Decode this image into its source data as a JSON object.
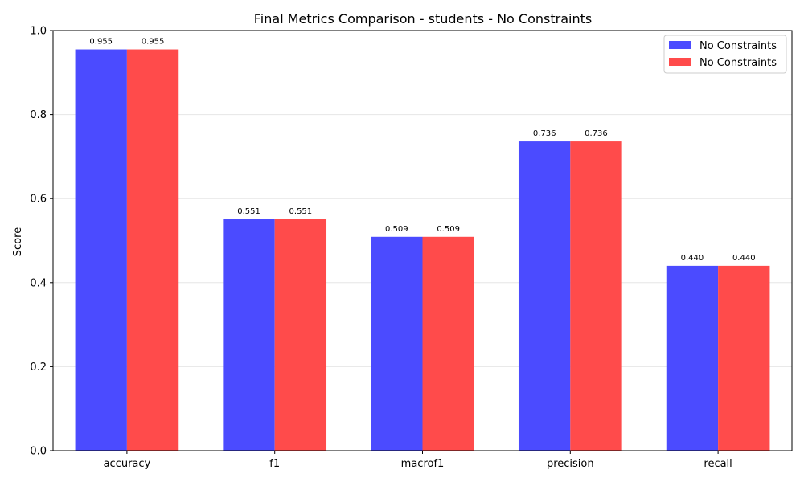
{
  "chart_data": {
    "type": "bar",
    "title": "Final Metrics Comparison - students - No Constraints",
    "xlabel": "",
    "ylabel": "Score",
    "categories": [
      "accuracy",
      "f1",
      "macrof1",
      "precision",
      "recall"
    ],
    "series": [
      {
        "name": "No Constraints",
        "color": "#4b4bff",
        "values": [
          0.955,
          0.551,
          0.509,
          0.736,
          0.44
        ],
        "labels": [
          "0.955",
          "0.551",
          "0.509",
          "0.736",
          "0.440"
        ]
      },
      {
        "name": "No Constraints",
        "color": "#ff4b4b",
        "values": [
          0.955,
          0.551,
          0.509,
          0.736,
          0.44
        ],
        "labels": [
          "0.955",
          "0.551",
          "0.509",
          "0.736",
          "0.440"
        ]
      }
    ],
    "ylim": [
      0,
      1.0
    ],
    "yticks": [
      "0.0",
      "0.2",
      "0.4",
      "0.6",
      "0.8",
      "1.0"
    ],
    "ytick_values": [
      0,
      0.2,
      0.4,
      0.6,
      0.8,
      1.0
    ],
    "grid": "y",
    "legend_position": "top-right"
  }
}
